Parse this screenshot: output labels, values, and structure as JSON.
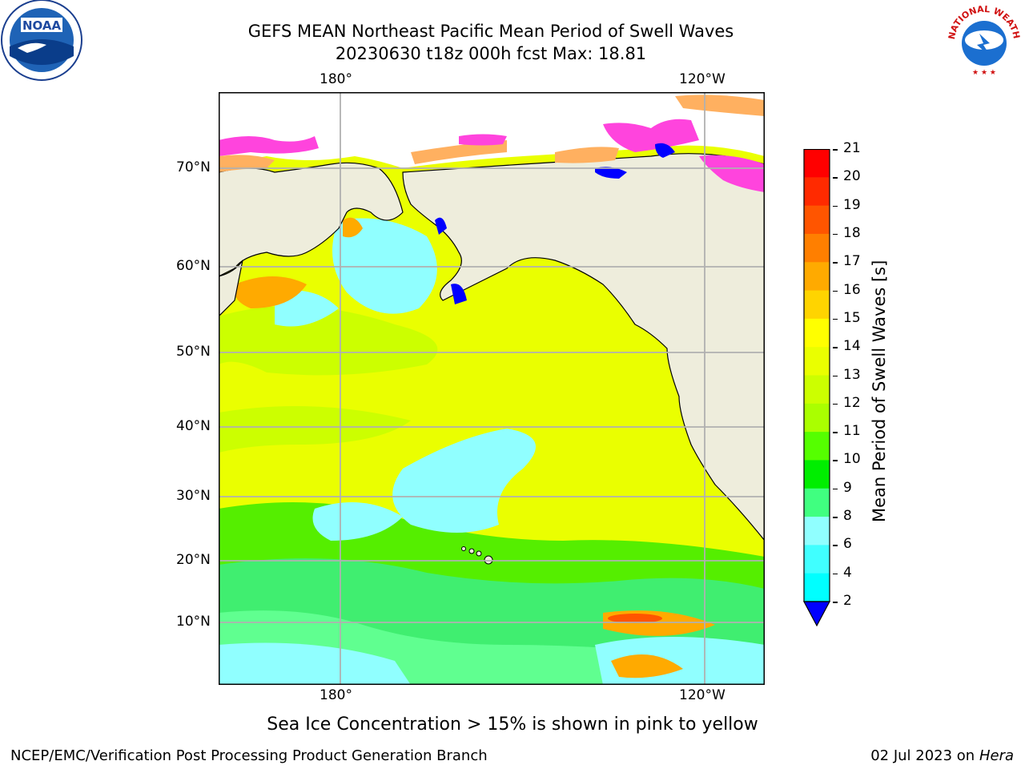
{
  "title": {
    "line1": "GEFS MEAN Northeast Pacific Mean Period of Swell Waves",
    "line2": "20230630 t18z 000h fcst   Max: 18.81"
  },
  "logos": {
    "left": {
      "name": "noaa-logo",
      "text": "NOAA"
    },
    "right": {
      "name": "nws-logo",
      "ring_text": "NATIONAL WEATHER SERVICE"
    }
  },
  "map": {
    "top_lon_labels": [
      "180°",
      "120°W"
    ],
    "bottom_lon_labels": [
      "180°",
      "120°W"
    ],
    "lat_labels": [
      "70°N",
      "60°N",
      "50°N",
      "40°N",
      "30°N",
      "20°N",
      "10°N"
    ],
    "colors": {
      "land": "#eeeddc",
      "grid": "#b0b0b0",
      "sea_ice_pink": "#ff44dd",
      "sea_ice_orange": "#ffb060",
      "ice_free_blue": "#0000ff"
    }
  },
  "colorbar": {
    "title": "Mean Period of Swell Waves [s]",
    "tick_labels": [
      "21",
      "20",
      "19",
      "18",
      "17",
      "16",
      "15",
      "14",
      "13",
      "12",
      "11",
      "10",
      "9",
      "8",
      "6",
      "4",
      "2"
    ],
    "colors": [
      "#ff0000",
      "#ff2a00",
      "#ff5500",
      "#ff7f00",
      "#ffaa00",
      "#ffd400",
      "#ffff00",
      "#eaff00",
      "#ccff00",
      "#aaff00",
      "#55ff00",
      "#00ee00",
      "#40ff80",
      "#90ffff",
      "#40ffff",
      "#00ffff",
      "#00a0ff",
      "#0066ff"
    ],
    "extend_color": "#0000ff"
  },
  "note": "Sea Ice Concentration > 15% is shown in pink to yellow",
  "footer": {
    "left": "NCEP/EMC/Verification Post Processing Product Generation Branch",
    "right_date": "02 Jul 2023 on ",
    "right_machine": "Hera"
  }
}
